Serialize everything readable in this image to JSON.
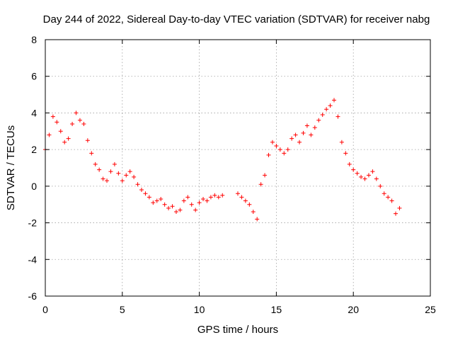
{
  "chart_data": {
    "type": "scatter",
    "title": "Day 244 of 2022, Sidereal Day-to-day VTEC variation (SDTVAR) for receiver nabg",
    "xlabel": "GPS time / hours",
    "ylabel": "SDTVAR / TECUs",
    "xlim": [
      0,
      25
    ],
    "ylim": [
      -6,
      8
    ],
    "x_ticks": [
      0,
      5,
      10,
      15,
      20,
      25
    ],
    "y_ticks": [
      -6,
      -4,
      -2,
      0,
      2,
      4,
      6,
      8
    ],
    "x_tick_labels": [
      "0",
      "5",
      "10",
      "15",
      "20",
      "25"
    ],
    "y_tick_labels": [
      "-6",
      "-4",
      "-2",
      "0",
      "2",
      "4",
      "6",
      "8"
    ],
    "grid": true,
    "marker": "+",
    "series": [
      {
        "name": "SDTVAR",
        "color": "#ff0000",
        "x": [
          0.0,
          0.25,
          0.5,
          0.75,
          1.0,
          1.25,
          1.5,
          1.75,
          2.0,
          2.25,
          2.5,
          2.75,
          3.0,
          3.25,
          3.5,
          3.75,
          4.0,
          4.25,
          4.5,
          4.75,
          5.0,
          5.25,
          5.5,
          5.75,
          6.0,
          6.25,
          6.5,
          6.75,
          7.0,
          7.25,
          7.5,
          7.75,
          8.0,
          8.25,
          8.5,
          8.75,
          9.0,
          9.25,
          9.5,
          9.75,
          10.0,
          10.25,
          10.5,
          10.75,
          11.0,
          11.25,
          11.5,
          12.5,
          12.75,
          13.0,
          13.25,
          13.5,
          13.75,
          14.0,
          14.25,
          14.5,
          14.75,
          15.0,
          15.25,
          15.5,
          15.75,
          16.0,
          16.25,
          16.5,
          16.75,
          17.0,
          17.25,
          17.5,
          17.75,
          18.0,
          18.25,
          18.5,
          18.75,
          19.0,
          19.25,
          19.5,
          19.75,
          20.0,
          20.25,
          20.5,
          20.75,
          21.0,
          21.25,
          21.5,
          21.75,
          22.0,
          22.25,
          22.5,
          22.75,
          23.0
        ],
        "y": [
          2.0,
          2.8,
          3.8,
          3.5,
          3.0,
          2.4,
          2.6,
          3.4,
          4.0,
          3.6,
          3.4,
          2.5,
          1.8,
          1.2,
          0.9,
          0.4,
          0.3,
          0.8,
          1.2,
          0.7,
          0.3,
          0.6,
          0.8,
          0.5,
          0.1,
          -0.2,
          -0.4,
          -0.6,
          -0.9,
          -0.8,
          -0.7,
          -1.0,
          -1.2,
          -1.1,
          -1.4,
          -1.3,
          -0.8,
          -0.6,
          -1.0,
          -1.3,
          -0.9,
          -0.7,
          -0.8,
          -0.6,
          -0.5,
          -0.6,
          -0.5,
          -0.4,
          -0.6,
          -0.8,
          -1.0,
          -1.4,
          -1.8,
          0.1,
          0.6,
          1.7,
          2.4,
          2.2,
          2.0,
          1.8,
          2.0,
          2.6,
          2.8,
          2.4,
          2.9,
          3.3,
          2.8,
          3.2,
          3.6,
          3.9,
          4.2,
          4.4,
          4.7,
          3.8,
          2.4,
          1.8,
          1.2,
          0.9,
          0.7,
          0.5,
          0.4,
          0.6,
          0.8,
          0.4,
          0.0,
          -0.4,
          -0.6,
          -0.8,
          -1.5,
          -1.2
        ]
      }
    ]
  }
}
